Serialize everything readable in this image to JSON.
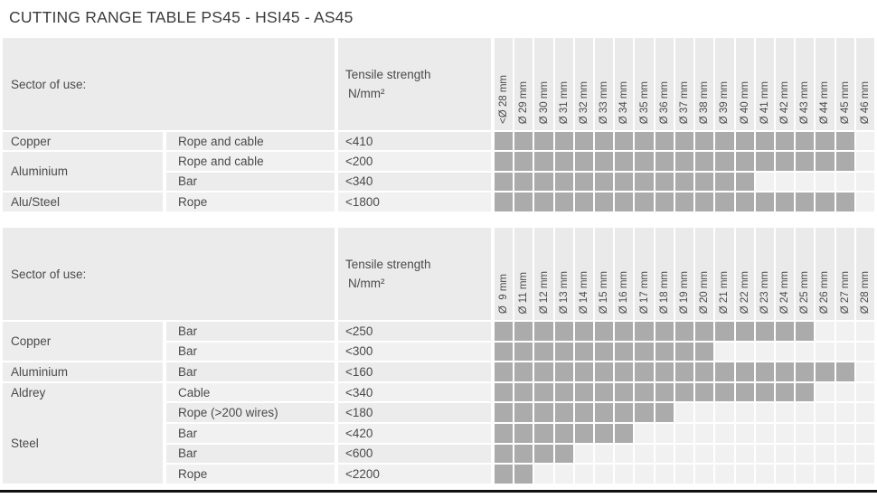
{
  "page": {
    "title": "CUTTING RANGE TABLE PS45 - HSI45 - AS45"
  },
  "colors": {
    "filled_cell": "#ababab",
    "empty_cell": "#f1f1f1",
    "header_bg": "#eaeaea",
    "row_bg": "#ededed",
    "text": "#4a4a4a",
    "title_text": "#3c3c3c",
    "bottom_rule": "#101010"
  },
  "tables": [
    {
      "sector_label": "Sector of use:",
      "tensile_label": "Tensile strength",
      "tensile_unit": "N/mm²",
      "diameter_columns": [
        "<Ø 28 mm",
        "Ø 29 mm",
        "Ø 30 mm",
        "Ø 31 mm",
        "Ø 32 mm",
        "Ø 33 mm",
        "Ø 34 mm",
        "Ø 35 mm",
        "Ø 36 mm",
        "Ø 37 mm",
        "Ø 38 mm",
        "Ø 39 mm",
        "Ø 40 mm",
        "Ø 41 mm",
        "Ø 42 mm",
        "Ø 43 mm",
        "Ø 44 mm",
        "Ø 45 mm",
        "Ø 46 mm"
      ],
      "groups": [
        {
          "material": "Copper",
          "span": 1,
          "divider": true
        },
        {
          "material": "Aluminium",
          "span": 2,
          "divider": true
        },
        {
          "material": "Alu/Steel",
          "span": 1,
          "divider": true
        }
      ],
      "rows": [
        {
          "type": "Rope and cable",
          "tensile": "<410",
          "filled_count": 18,
          "max_diameter": "Ø 45 mm"
        },
        {
          "type": "Rope and cable",
          "tensile": "<200",
          "filled_count": 18,
          "max_diameter": "Ø 45 mm"
        },
        {
          "type": "Bar",
          "tensile": "<340",
          "filled_count": 13,
          "max_diameter": "Ø 40 mm"
        },
        {
          "type": "Rope",
          "tensile": "<1800",
          "filled_count": 18,
          "max_diameter": "Ø 45 mm"
        }
      ]
    },
    {
      "sector_label": "Sector of use:",
      "tensile_label": "Tensile strength",
      "tensile_unit": "N/mm²",
      "diameter_columns": [
        "Ø  9 mm",
        "Ø 11 mm",
        "Ø 12 mm",
        "Ø 13 mm",
        "Ø 14 mm",
        "Ø 15 mm",
        "Ø 16 mm",
        "Ø 17 mm",
        "Ø 18 mm",
        "Ø 19 mm",
        "Ø 20 mm",
        "Ø 21 mm",
        "Ø 22 mm",
        "Ø 23 mm",
        "Ø 24 mm",
        "Ø 25 mm",
        "Ø 26 mm",
        "Ø 27 mm",
        "Ø 28 mm"
      ],
      "groups": [
        {
          "material": "Copper",
          "span": 2,
          "divider": true
        },
        {
          "material": "Aluminium",
          "span": 1,
          "divider": true
        },
        {
          "material": "Aldrey",
          "span": 1,
          "divider": true
        },
        {
          "material": "Steel",
          "span": 4,
          "divider": false
        }
      ],
      "rows": [
        {
          "type": "Bar",
          "tensile": "<250",
          "filled_count": 16,
          "max_diameter": "Ø 25 mm"
        },
        {
          "type": "Bar",
          "tensile": "<300",
          "filled_count": 11,
          "max_diameter": "Ø 20 mm"
        },
        {
          "type": "Bar",
          "tensile": "<160",
          "filled_count": 18,
          "max_diameter": "Ø 27 mm"
        },
        {
          "type": "Cable",
          "tensile": "<340",
          "filled_count": 16,
          "max_diameter": "Ø 25 mm"
        },
        {
          "type": "Rope (>200 wires)",
          "tensile": "<180",
          "filled_count": 9,
          "max_diameter": "Ø 18 mm"
        },
        {
          "type": "Bar",
          "tensile": "<420",
          "filled_count": 7,
          "max_diameter": "Ø 16 mm"
        },
        {
          "type": "Bar",
          "tensile": "<600",
          "filled_count": 4,
          "max_diameter": "Ø 13 mm"
        },
        {
          "type": "Rope",
          "tensile": "<2200",
          "filled_count": 2,
          "max_diameter": "Ø 11 mm"
        }
      ]
    }
  ]
}
